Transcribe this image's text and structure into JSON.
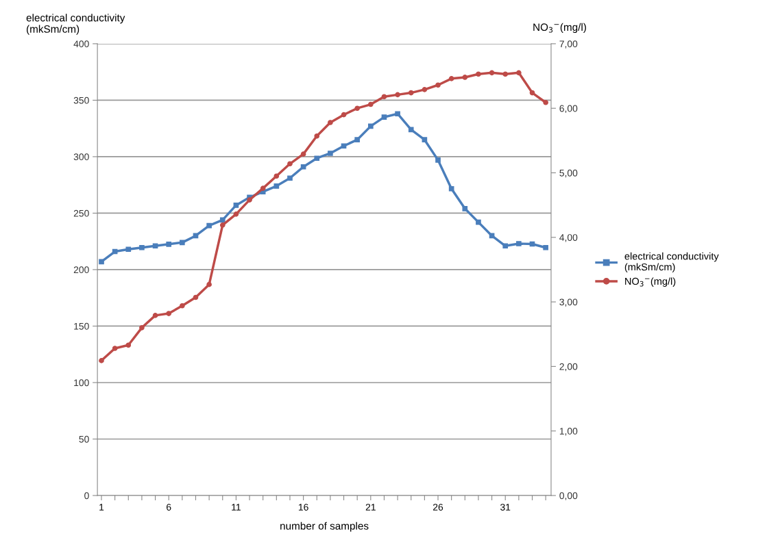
{
  "chart_data": {
    "type": "line",
    "ylabel": "electrical conductivity\n(mkSm/cm)",
    "y2label": "NO$_{3}$$^{−}$(mg/l)",
    "xlabel": "number of samples",
    "categories": [
      "1",
      null,
      null,
      null,
      null,
      "6",
      null,
      null,
      null,
      null,
      "11",
      null,
      null,
      null,
      null,
      "16",
      null,
      null,
      null,
      null,
      "21",
      null,
      null,
      null,
      null,
      "26",
      null,
      null,
      null,
      null,
      "31",
      null,
      null,
      null
    ],
    "series": [
      {
        "name": "electrical conductivity\n(mkSm/cm)",
        "color": "#4a7ebb",
        "marker": "square",
        "values": [
          207,
          216,
          218,
          219.5,
          221,
          222.5,
          224,
          230,
          239,
          244,
          257,
          264,
          269,
          274,
          281,
          291,
          298.6,
          303,
          309.5,
          315,
          327,
          335,
          338,
          324,
          315,
          297,
          271.6,
          254,
          242,
          230,
          221,
          223,
          222.7,
          219.5
        ]
      },
      {
        "name": "NO$_{3}$$^{−}$(mg/l)",
        "color": "#be4b48",
        "marker": "circle",
        "axis": "y2",
        "values": [
          2.09,
          2.28,
          2.33,
          2.6,
          2.79,
          2.82,
          2.94,
          3.07,
          3.27,
          4.19,
          4.36,
          4.58,
          4.76,
          4.95,
          5.14,
          5.29,
          5.57,
          5.78,
          5.9,
          6.0,
          6.06,
          6.18,
          6.21,
          6.24,
          6.29,
          6.36,
          6.46,
          6.48,
          6.53,
          6.55,
          6.53,
          6.55,
          6.24,
          6.09
        ]
      }
    ],
    "ylim": [
      0,
      400
    ],
    "yticks": [
      0,
      50,
      100,
      150,
      200,
      250,
      300,
      350,
      400
    ],
    "y2lim": [
      0,
      7
    ],
    "y2ticks": [
      {
        "value": 0,
        "label": "0,00"
      },
      {
        "value": 1,
        "label": "1,00"
      },
      {
        "value": 2,
        "label": "2,00"
      },
      {
        "value": 3,
        "label": "3,00"
      },
      {
        "value": 4,
        "label": "4,00"
      },
      {
        "value": 5,
        "label": "5,00"
      },
      {
        "value": 6,
        "label": "6,00"
      },
      {
        "value": 7,
        "label": "7,00"
      }
    ],
    "grid": "y",
    "legend": "right",
    "line_style": "solid"
  }
}
